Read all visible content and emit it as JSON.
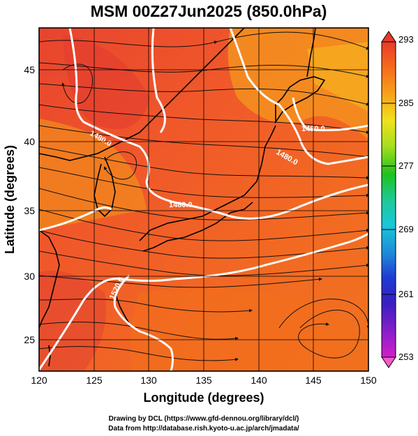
{
  "title": "MSM 00Z27Jun2025 (850.0hPa)",
  "x_label": "Longitude (degrees)",
  "y_label": "Latitude  (degrees)",
  "x_ticks": [
    "120",
    "125",
    "130",
    "135",
    "140",
    "145",
    "150"
  ],
  "y_ticks": [
    "25",
    "30",
    "35",
    "40",
    "45"
  ],
  "colorbar": {
    "ticks": [
      "293",
      "285",
      "277",
      "269",
      "261",
      "253"
    ],
    "colors_top_to_bottom": [
      "#e83a2a",
      "#f56a1c",
      "#f7a51a",
      "#f0e21c",
      "#a6de1e",
      "#1ec21e",
      "#1ec995",
      "#18c8d8",
      "#1e8ad8",
      "#1e3ad2",
      "#3a1ec2",
      "#8a1ec8",
      "#d21ec8",
      "#f55acb"
    ]
  },
  "contour_labels": [
    "1480.0",
    "1480.0",
    "1480.0",
    "1480.0",
    "1520.0"
  ],
  "credits": [
    "Drawing by DCL (https://www.gfd-dennou.org/library/dcl/)",
    "Data from http://database.rish.kyoto-u.ac.jp/arch/jmadata/"
  ]
}
